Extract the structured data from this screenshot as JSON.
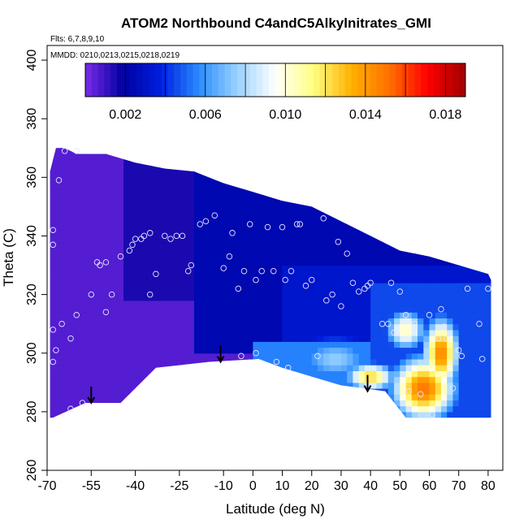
{
  "chart_data": {
    "type": "heatmap",
    "title": "ATOM2 Northbound C4andC5Alkylnitrates_GMI",
    "flights_note": "Flts: 6,7,8,9,10",
    "dates_note": "MMDD: 0210,0213,0215,0218,0219",
    "xlabel": "Latitude (deg N)",
    "ylabel": "Theta (C)",
    "xlim": [
      -70,
      85
    ],
    "ylim": [
      260,
      405
    ],
    "xticks": [
      -70,
      -55,
      -40,
      -25,
      -10,
      0,
      10,
      20,
      30,
      40,
      50,
      60,
      70,
      80
    ],
    "xtick_labels": [
      "-70",
      "-55",
      "-40",
      "-25",
      "-10",
      "0",
      "10",
      "20",
      "30",
      "40",
      "50",
      "60",
      "70",
      "80"
    ],
    "yticks": [
      260,
      280,
      300,
      320,
      340,
      360,
      380,
      400
    ],
    "ytick_labels": [
      "260",
      "280",
      "300",
      "320",
      "340",
      "360",
      "380",
      "400"
    ],
    "colorbar": {
      "range": [
        0,
        0.019
      ],
      "ticks": [
        0.002,
        0.006,
        0.01,
        0.014,
        0.018
      ],
      "tick_labels": [
        "0.002",
        "0.006",
        "0.010",
        "0.014",
        "0.018"
      ],
      "colors": [
        "#7b2be8",
        "#0000a0",
        "#0020e0",
        "#2a8cff",
        "#9ad2ff",
        "#ffffff",
        "#ffff80",
        "#ffb000",
        "#ff7000",
        "#ff0000",
        "#a00000"
      ]
    },
    "domain_envelope": {
      "top": [
        [
          -69,
          362
        ],
        [
          -67,
          370
        ],
        [
          -64,
          370
        ],
        [
          -60,
          368
        ],
        [
          -50,
          368
        ],
        [
          -40,
          365
        ],
        [
          -30,
          363
        ],
        [
          -20,
          362
        ],
        [
          -10,
          358
        ],
        [
          0,
          355
        ],
        [
          10,
          352
        ],
        [
          20,
          350
        ],
        [
          30,
          345
        ],
        [
          40,
          340
        ],
        [
          50,
          335
        ],
        [
          60,
          333
        ],
        [
          70,
          330
        ],
        [
          80,
          327
        ],
        [
          81,
          325
        ]
      ],
      "bottom": [
        [
          81,
          278
        ],
        [
          70,
          278
        ],
        [
          52,
          278
        ],
        [
          45,
          287
        ],
        [
          30,
          289
        ],
        [
          20,
          292
        ],
        [
          10,
          295
        ],
        [
          2,
          298
        ],
        [
          -15,
          297
        ],
        [
          -33,
          295
        ],
        [
          -45,
          283
        ],
        [
          -57,
          283
        ],
        [
          -68,
          278
        ],
        [
          -69,
          278
        ]
      ]
    },
    "hotspots": [
      {
        "lat": 58,
        "theta": 288,
        "value": 0.015,
        "spread_lat": 9,
        "spread_theta": 9
      },
      {
        "lat": 64,
        "theta": 300,
        "value": 0.0145,
        "spread_lat": 5,
        "spread_theta": 10
      },
      {
        "lat": 40,
        "theta": 292,
        "value": 0.0125,
        "spread_lat": 7,
        "spread_theta": 4
      },
      {
        "lat": 52,
        "theta": 308,
        "value": 0.0105,
        "spread_lat": 6,
        "spread_theta": 6
      },
      {
        "lat": 28,
        "theta": 298,
        "value": 0.0075,
        "spread_lat": 12,
        "spread_theta": 7
      }
    ],
    "observation_points": [
      [
        -68,
        297
      ],
      [
        -68,
        308
      ],
      [
        -67,
        301
      ],
      [
        -68,
        342
      ],
      [
        -68,
        337
      ],
      [
        -66,
        359
      ],
      [
        -64,
        369
      ],
      [
        -60,
        369
      ],
      [
        -65,
        310
      ],
      [
        -62,
        305
      ],
      [
        -60,
        313
      ],
      [
        -58,
        283
      ],
      [
        -62,
        281
      ],
      [
        -55,
        320
      ],
      [
        -50,
        314
      ],
      [
        -53,
        331
      ],
      [
        -52,
        330
      ],
      [
        -50,
        331
      ],
      [
        -48,
        320
      ],
      [
        -45,
        333
      ],
      [
        -42,
        335
      ],
      [
        -41,
        337
      ],
      [
        -40,
        339
      ],
      [
        -38,
        339
      ],
      [
        -37,
        340
      ],
      [
        -35,
        341
      ],
      [
        -35,
        320
      ],
      [
        -33,
        327
      ],
      [
        -30,
        340
      ],
      [
        -28,
        339
      ],
      [
        -26,
        340
      ],
      [
        -24,
        340
      ],
      [
        -22,
        328
      ],
      [
        -21,
        330
      ],
      [
        -18,
        344
      ],
      [
        -16,
        345
      ],
      [
        -13,
        347
      ],
      [
        -10,
        329
      ],
      [
        -8,
        333
      ],
      [
        -7,
        341
      ],
      [
        -5,
        322
      ],
      [
        -4,
        299
      ],
      [
        -3,
        328
      ],
      [
        -1,
        344
      ],
      [
        1,
        300
      ],
      [
        1,
        325
      ],
      [
        3,
        328
      ],
      [
        5,
        343
      ],
      [
        7,
        328
      ],
      [
        8,
        297
      ],
      [
        10,
        343
      ],
      [
        11,
        325
      ],
      [
        12,
        295
      ],
      [
        13,
        328
      ],
      [
        15,
        344
      ],
      [
        16,
        344
      ],
      [
        18,
        323
      ],
      [
        20,
        325
      ],
      [
        22,
        299
      ],
      [
        24,
        346
      ],
      [
        25,
        318
      ],
      [
        27,
        320
      ],
      [
        29,
        338
      ],
      [
        30,
        316
      ],
      [
        32,
        334
      ],
      [
        34,
        324
      ],
      [
        36,
        321
      ],
      [
        38,
        322
      ],
      [
        39,
        323
      ],
      [
        40,
        324
      ],
      [
        44,
        310
      ],
      [
        46,
        310
      ],
      [
        47,
        324
      ],
      [
        48,
        307
      ],
      [
        50,
        321
      ],
      [
        52,
        313
      ],
      [
        53,
        287
      ],
      [
        55,
        310
      ],
      [
        57,
        286
      ],
      [
        60,
        313
      ],
      [
        61,
        279
      ],
      [
        63,
        305
      ],
      [
        64,
        315
      ],
      [
        65,
        309
      ],
      [
        66,
        305
      ],
      [
        67,
        296
      ],
      [
        68,
        288
      ],
      [
        70,
        301
      ],
      [
        71,
        299
      ],
      [
        73,
        322
      ],
      [
        77,
        310
      ],
      [
        78,
        298
      ],
      [
        80,
        322
      ]
    ],
    "arrows": [
      {
        "lat": -55,
        "theta": 283
      },
      {
        "lat": -11,
        "theta": 297
      },
      {
        "lat": 39,
        "theta": 287
      }
    ]
  }
}
